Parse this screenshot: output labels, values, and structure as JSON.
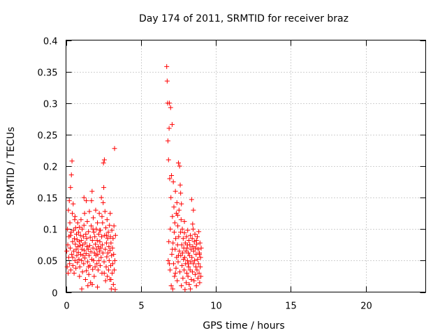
{
  "chart_data": {
    "type": "scatter",
    "title": "Day 174 of 2011, SRMTID for receiver braz",
    "xlabel": "GPS time / hours",
    "ylabel": "SRMTID / TECUs",
    "xlim": [
      0,
      24
    ],
    "ylim": [
      0,
      0.4
    ],
    "xticks": [
      0,
      5,
      10,
      15,
      20
    ],
    "xtick_labels": [
      "0",
      "5",
      "10",
      "15",
      "20"
    ],
    "yticks": [
      0,
      0.05,
      0.1,
      0.15,
      0.2,
      0.25,
      0.3,
      0.35,
      0.4
    ],
    "ytick_labels": [
      "0",
      "0.05",
      "0.1",
      "0.15",
      "0.2",
      "0.25",
      "0.3",
      "0.35",
      "0.4"
    ],
    "grid": true,
    "marker": "plus",
    "color": "#ff0000",
    "series": [
      {
        "name": "SRMTID",
        "points": [
          [
            0.05,
            0.065
          ],
          [
            0.08,
            0.04
          ],
          [
            0.1,
            0.1
          ],
          [
            0.12,
            0.075
          ],
          [
            0.14,
            0.03
          ],
          [
            0.16,
            0.13
          ],
          [
            0.18,
            0.055
          ],
          [
            0.2,
            0.088
          ],
          [
            0.22,
            0.145
          ],
          [
            0.24,
            0.045
          ],
          [
            0.26,
            0.11
          ],
          [
            0.28,
            0.07
          ],
          [
            0.3,
            0.166
          ],
          [
            0.32,
            0.035
          ],
          [
            0.34,
            0.095
          ],
          [
            0.36,
            0.186
          ],
          [
            0.38,
            0.06
          ],
          [
            0.4,
            0.208
          ],
          [
            0.42,
            0.125
          ],
          [
            0.44,
            0.08
          ],
          [
            0.46,
            0.042
          ],
          [
            0.48,
            0.14
          ],
          [
            0.5,
            0.098
          ],
          [
            0.52,
            0.065
          ],
          [
            0.54,
            0.03
          ],
          [
            0.56,
            0.085
          ],
          [
            0.58,
            0.115
          ],
          [
            0.6,
            0.05
          ],
          [
            0.62,
            0.076
          ],
          [
            0.64,
            0.102
          ],
          [
            0.66,
            0.038
          ],
          [
            0.68,
            0.068
          ],
          [
            0.7,
            0.092
          ],
          [
            0.72,
            0.058
          ],
          [
            0.74,
            0.083
          ],
          [
            0.76,
            0.047
          ],
          [
            0.78,
            0.11
          ],
          [
            0.8,
            0.072
          ],
          [
            0.82,
            0.063
          ],
          [
            0.84,
            0.095
          ],
          [
            0.86,
            0.052
          ],
          [
            0.88,
            0.08
          ],
          [
            0.9,
            0.103
          ],
          [
            0.92,
            0.04
          ],
          [
            0.94,
            0.074
          ],
          [
            0.96,
            0.09
          ],
          [
            0.98,
            0.06
          ],
          [
            1.0,
            0.115
          ],
          [
            1.02,
            0.082
          ],
          [
            1.04,
            0.05
          ],
          [
            1.06,
            0.068
          ],
          [
            1.08,
            0.1
          ],
          [
            1.1,
            0.032
          ],
          [
            1.12,
            0.075
          ],
          [
            1.14,
            0.058
          ],
          [
            1.16,
            0.088
          ],
          [
            1.18,
            0.045
          ],
          [
            1.2,
            0.106
          ],
          [
            1.22,
            0.066
          ],
          [
            1.24,
            0.125
          ],
          [
            1.26,
            0.054
          ],
          [
            1.28,
            0.078
          ],
          [
            1.3,
            0.02
          ],
          [
            1.32,
            0.092
          ],
          [
            1.34,
            0.061
          ],
          [
            1.36,
            0.034
          ],
          [
            1.38,
            0.085
          ],
          [
            1.4,
            0.072
          ],
          [
            1.42,
            0.112
          ],
          [
            1.44,
            0.048
          ],
          [
            1.46,
            0.01
          ],
          [
            1.48,
            0.068
          ],
          [
            1.5,
            0.096
          ],
          [
            1.52,
            0.028
          ],
          [
            1.54,
            0.058
          ],
          [
            1.56,
            0.128
          ],
          [
            1.58,
            0.074
          ],
          [
            1.6,
            0.042
          ],
          [
            1.62,
            0.087
          ],
          [
            1.64,
            0.015
          ],
          [
            1.66,
            0.064
          ],
          [
            1.68,
            0.105
          ],
          [
            1.7,
            0.145
          ],
          [
            1.72,
            0.052
          ],
          [
            1.74,
            0.16
          ],
          [
            1.76,
            0.082
          ],
          [
            1.78,
            0.036
          ],
          [
            1.8,
            0.07
          ],
          [
            1.82,
            0.118
          ],
          [
            1.84,
            0.05
          ],
          [
            1.86,
            0.095
          ],
          [
            1.88,
            0.025
          ],
          [
            1.9,
            0.062
          ],
          [
            1.92,
            0.088
          ],
          [
            1.94,
            0.04
          ],
          [
            1.96,
            0.076
          ],
          [
            1.98,
            0.13
          ],
          [
            2.0,
            0.058
          ],
          [
            2.02,
            0.1
          ],
          [
            2.04,
            0.068
          ],
          [
            2.06,
            0.045
          ],
          [
            2.08,
            0.082
          ],
          [
            2.1,
            0.11
          ],
          [
            2.12,
            0.06
          ],
          [
            2.14,
            0.035
          ],
          [
            2.16,
            0.072
          ],
          [
            2.18,
            0.092
          ],
          [
            2.2,
            0.05
          ],
          [
            2.22,
            0.125
          ],
          [
            2.24,
            0.065
          ],
          [
            2.26,
            0.08
          ],
          [
            2.28,
            0.042
          ],
          [
            2.3,
            0.098
          ],
          [
            2.32,
            0.07
          ],
          [
            2.34,
            0.055
          ],
          [
            2.36,
            0.15
          ],
          [
            2.38,
            0.088
          ],
          [
            2.4,
            0.03
          ],
          [
            2.42,
            0.075
          ],
          [
            2.44,
            0.11
          ],
          [
            2.46,
            0.062
          ],
          [
            2.48,
            0.142
          ],
          [
            2.5,
            0.205
          ],
          [
            2.52,
            0.166
          ],
          [
            2.54,
            0.048
          ],
          [
            2.56,
            0.21
          ],
          [
            2.58,
            0.09
          ],
          [
            2.6,
            0.128
          ],
          [
            2.62,
            0.068
          ],
          [
            2.64,
            0.018
          ],
          [
            2.66,
            0.102
          ],
          [
            2.68,
            0.04
          ],
          [
            2.7,
            0.078
          ],
          [
            2.72,
            0.056
          ],
          [
            2.74,
            0.115
          ],
          [
            2.76,
            0.025
          ],
          [
            2.78,
            0.085
          ],
          [
            2.8,
            0.062
          ],
          [
            2.82,
            0.095
          ],
          [
            2.84,
            0.035
          ],
          [
            2.86,
            0.072
          ],
          [
            2.88,
            0.05
          ],
          [
            2.9,
            0.106
          ],
          [
            2.92,
            0.02
          ],
          [
            2.94,
            0.066
          ],
          [
            2.96,
            0.088
          ],
          [
            2.98,
            0.042
          ],
          [
            3.0,
            0.078
          ],
          [
            3.02,
            0.005
          ],
          [
            3.04,
            0.058
          ],
          [
            3.06,
            0.098
          ],
          [
            3.08,
            0.03
          ],
          [
            3.1,
            0.07
          ],
          [
            3.12,
            0.045
          ],
          [
            3.14,
            0.085
          ],
          [
            3.16,
            0.012
          ],
          [
            3.18,
            0.06
          ],
          [
            3.2,
            0.105
          ],
          [
            3.22,
            0.035
          ],
          [
            3.24,
            0.228
          ],
          [
            3.26,
            0.05
          ],
          [
            3.28,
            0.004
          ],
          [
            3.3,
            0.09
          ],
          [
            0.3,
            0.09
          ],
          [
            0.6,
            0.12
          ],
          [
            0.9,
            0.025
          ],
          [
            1.2,
            0.15
          ],
          [
            1.5,
            0.04
          ],
          [
            1.8,
            0.1
          ],
          [
            2.1,
            0.008
          ],
          [
            2.4,
            0.12
          ],
          [
            2.7,
            0.09
          ],
          [
            3.0,
            0.02
          ],
          [
            0.45,
            0.055
          ],
          [
            1.35,
            0.145
          ],
          [
            2.25,
            0.098
          ],
          [
            2.95,
            0.125
          ],
          [
            1.05,
            0.005
          ],
          [
            1.75,
            0.012
          ],
          [
            2.55,
            0.03
          ],
          [
            6.72,
            0.358
          ],
          [
            6.75,
            0.335
          ],
          [
            6.78,
            0.3
          ],
          [
            6.8,
            0.24
          ],
          [
            6.82,
            0.05
          ],
          [
            6.84,
            0.21
          ],
          [
            6.86,
            0.08
          ],
          [
            6.88,
            0.26
          ],
          [
            6.9,
            0.3
          ],
          [
            6.92,
            0.18
          ],
          [
            6.94,
            0.035
          ],
          [
            6.96,
            0.1
          ],
          [
            6.98,
            0.293
          ],
          [
            7.0,
            0.15
          ],
          [
            7.02,
            0.01
          ],
          [
            7.04,
            0.185
          ],
          [
            7.06,
            0.06
          ],
          [
            7.08,
            0.266
          ],
          [
            7.1,
            0.12
          ],
          [
            7.12,
            0.005
          ],
          [
            7.14,
            0.078
          ],
          [
            7.16,
            0.175
          ],
          [
            7.18,
            0.045
          ],
          [
            7.2,
            0.135
          ],
          [
            7.22,
            0.095
          ],
          [
            7.24,
            0.025
          ],
          [
            7.26,
            0.11
          ],
          [
            7.28,
            0.068
          ],
          [
            7.3,
            0.16
          ],
          [
            7.32,
            0.085
          ],
          [
            7.34,
            0.038
          ],
          [
            7.36,
            0.125
          ],
          [
            7.38,
            0.055
          ],
          [
            7.4,
            0.142
          ],
          [
            7.42,
            0.018
          ],
          [
            7.44,
            0.075
          ],
          [
            7.46,
            0.105
          ],
          [
            7.48,
            0.048
          ],
          [
            7.5,
            0.205
          ],
          [
            7.52,
            0.088
          ],
          [
            7.54,
            0.13
          ],
          [
            7.56,
            0.065
          ],
          [
            7.58,
            0.2
          ],
          [
            7.6,
            0.032
          ],
          [
            7.62,
            0.17
          ],
          [
            7.64,
            0.095
          ],
          [
            7.66,
            0.058
          ],
          [
            7.68,
            0.115
          ],
          [
            7.7,
            0.14
          ],
          [
            7.72,
            0.075
          ],
          [
            7.74,
            0.042
          ],
          [
            7.76,
            0.1
          ],
          [
            7.78,
            0.062
          ],
          [
            7.8,
            0.022
          ],
          [
            7.82,
            0.085
          ],
          [
            7.84,
            0.052
          ],
          [
            7.86,
            0.07
          ],
          [
            7.88,
            0.035
          ],
          [
            7.9,
            0.094
          ],
          [
            7.92,
            0.055
          ],
          [
            7.94,
            0.004
          ],
          [
            7.96,
            0.078
          ],
          [
            7.98,
            0.045
          ],
          [
            8.0,
            0.065
          ],
          [
            8.02,
            0.015
          ],
          [
            8.04,
            0.088
          ],
          [
            8.06,
            0.03
          ],
          [
            8.08,
            0.07
          ],
          [
            8.1,
            0.05
          ],
          [
            8.12,
            0.098
          ],
          [
            8.14,
            0.025
          ],
          [
            8.16,
            0.062
          ],
          [
            8.18,
            0.04
          ],
          [
            8.2,
            0.082
          ],
          [
            8.22,
            0.012
          ],
          [
            8.24,
            0.058
          ],
          [
            8.26,
            0.075
          ],
          [
            8.28,
            0.035
          ],
          [
            8.3,
            0.09
          ],
          [
            8.32,
            0.048
          ],
          [
            8.34,
            0.068
          ],
          [
            8.36,
            0.02
          ],
          [
            8.38,
            0.147
          ],
          [
            8.4,
            0.055
          ],
          [
            8.42,
            0.085
          ],
          [
            8.44,
            0.032
          ],
          [
            8.46,
            0.072
          ],
          [
            8.48,
            0.1
          ],
          [
            8.5,
            0.045
          ],
          [
            8.52,
            0.065
          ],
          [
            8.54,
            0.018
          ],
          [
            8.56,
            0.08
          ],
          [
            8.58,
            0.05
          ],
          [
            8.6,
            0.092
          ],
          [
            8.62,
            0.028
          ],
          [
            8.64,
            0.07
          ],
          [
            8.66,
            0.04
          ],
          [
            8.68,
            0.06
          ],
          [
            8.7,
            0.01
          ],
          [
            8.72,
            0.076
          ],
          [
            8.74,
            0.035
          ],
          [
            8.76,
            0.088
          ],
          [
            8.78,
            0.052
          ],
          [
            8.8,
            0.022
          ],
          [
            8.82,
            0.068
          ],
          [
            8.84,
            0.045
          ],
          [
            8.86,
            0.096
          ],
          [
            8.88,
            0.03
          ],
          [
            8.9,
            0.062
          ],
          [
            8.92,
            0.015
          ],
          [
            8.94,
            0.078
          ],
          [
            8.96,
            0.04
          ],
          [
            8.98,
            0.055
          ],
          [
            9.0,
            0.025
          ],
          [
            9.02,
            0.07
          ],
          [
            6.9,
            0.045
          ],
          [
            7.1,
            0.068
          ],
          [
            7.3,
            0.03
          ],
          [
            7.5,
            0.058
          ],
          [
            7.7,
            0.01
          ],
          [
            7.9,
            0.112
          ],
          [
            8.1,
            0.075
          ],
          [
            8.3,
            0.005
          ],
          [
            8.5,
            0.13
          ],
          [
            8.7,
            0.082
          ],
          [
            8.9,
            0.06
          ],
          [
            7.45,
            0.122
          ],
          [
            7.65,
            0.157
          ],
          [
            8.15,
            0.045
          ],
          [
            8.45,
            0.108
          ]
        ]
      }
    ]
  }
}
